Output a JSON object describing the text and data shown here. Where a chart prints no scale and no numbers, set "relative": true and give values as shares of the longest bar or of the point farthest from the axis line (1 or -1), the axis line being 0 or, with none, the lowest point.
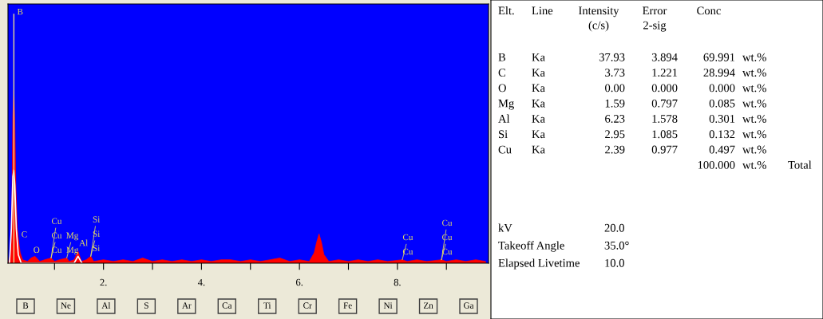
{
  "chart_data": [
    {
      "type": "area",
      "relative": true,
      "xlim": [
        0.05,
        9.86
      ],
      "xticks": [
        {
          "value": 1,
          "label": null
        },
        {
          "value": 2,
          "label": "2."
        },
        {
          "value": 3,
          "label": null
        },
        {
          "value": 4,
          "label": "4."
        },
        {
          "value": 5,
          "label": null
        },
        {
          "value": 6,
          "label": "6."
        },
        {
          "value": 7,
          "label": null
        },
        {
          "value": 8,
          "label": "8."
        },
        {
          "value": 9,
          "label": null
        }
      ],
      "grid": false,
      "legend": false,
      "tick_labels": "x",
      "ref_lines": [
        {
          "axis": "x",
          "value": 0.17,
          "color": "#e8d890",
          "label": "B"
        }
      ],
      "series": [
        {
          "type": "area",
          "color": "#ff0000",
          "x": [
            0.05,
            0.1,
            0.13,
            0.15,
            0.17,
            0.19,
            0.21,
            0.24,
            0.27,
            0.3,
            0.35,
            0.45,
            0.52,
            0.6,
            0.7,
            0.8,
            0.93,
            1.0,
            1.1,
            1.25,
            1.3,
            1.4,
            1.48,
            1.55,
            1.65,
            1.74,
            1.8,
            2.0,
            2.2,
            2.4,
            2.6,
            2.8,
            3.0,
            3.2,
            3.4,
            3.6,
            3.8,
            4.0,
            4.2,
            4.4,
            4.6,
            4.8,
            5.0,
            5.2,
            5.4,
            5.6,
            5.8,
            6.0,
            6.2,
            6.3,
            6.35,
            6.4,
            6.45,
            6.5,
            6.6,
            6.8,
            7.0,
            7.2,
            7.4,
            7.6,
            7.8,
            8.1,
            8.2,
            8.4,
            8.6,
            8.9,
            9.0,
            9.2,
            9.4,
            9.6,
            9.8
          ],
          "values": [
            0,
            0.05,
            0.35,
            0.85,
            1.0,
            0.8,
            0.45,
            0.2,
            0.12,
            0.06,
            0.02,
            0.01,
            0.03,
            0.04,
            0.01,
            0.02,
            0.03,
            0.01,
            0.02,
            0.03,
            0.01,
            0.02,
            0.07,
            0.01,
            0.02,
            0.04,
            0.01,
            0.02,
            0.01,
            0.02,
            0.01,
            0.03,
            0.01,
            0.02,
            0.01,
            0.02,
            0.01,
            0.02,
            0.01,
            0.02,
            0.02,
            0.01,
            0.02,
            0.01,
            0.02,
            0.03,
            0.01,
            0.02,
            0.01,
            0.06,
            0.12,
            0.17,
            0.12,
            0.05,
            0.01,
            0.02,
            0.01,
            0.02,
            0.01,
            0.02,
            0.01,
            0.02,
            0.01,
            0.02,
            0.01,
            0.02,
            0.01,
            0.02,
            0.01,
            0.02,
            0.01
          ]
        },
        {
          "type": "line",
          "color": "#ffffff",
          "x": [
            0.08,
            0.12,
            0.15,
            0.17,
            0.19,
            0.22,
            0.26,
            0.32,
            1.4,
            1.48,
            1.56
          ],
          "values": [
            0,
            0.2,
            0.5,
            0.54,
            0.45,
            0.2,
            0.05,
            0,
            0,
            0.04,
            0
          ]
        }
      ],
      "annotations": [
        {
          "text": "C",
          "x": 0.27,
          "y": 0.12
        },
        {
          "text": "O",
          "x": 0.52,
          "y": 0.03
        },
        {
          "text": "Cu",
          "x": 0.93,
          "y": 0.03
        },
        {
          "text": "Cu",
          "x": 0.93,
          "y": 0.03
        },
        {
          "text": "Cu",
          "x": 0.93,
          "y": 0.03
        },
        {
          "text": "Mg",
          "x": 1.25,
          "y": 0.03
        },
        {
          "text": "Mg",
          "x": 1.25,
          "y": 0.03
        },
        {
          "text": "Al",
          "x": 1.48,
          "y": 0.07
        },
        {
          "text": "Si",
          "x": 1.74,
          "y": 0.04
        },
        {
          "text": "Si",
          "x": 1.74,
          "y": 0.04
        },
        {
          "text": "Si",
          "x": 1.74,
          "y": 0.04
        },
        {
          "text": "Cu",
          "x": 8.1,
          "y": 0.02
        },
        {
          "text": "Cu",
          "x": 8.1,
          "y": 0.02
        },
        {
          "text": "Cu",
          "x": 8.9,
          "y": 0.02
        },
        {
          "text": "Cu",
          "x": 8.9,
          "y": 0.02
        },
        {
          "text": "Cu",
          "x": 8.9,
          "y": 0.02
        },
        "B",
        "Ne",
        "Al",
        "S",
        "Ar",
        "Ca",
        "Ti",
        "Cr",
        "Fe",
        "Ni",
        "Zn",
        "Ga"
      ]
    },
    {
      "type": "other",
      "annotations": [
        "Elt.\tLine\tIntensity\n(c/s)\tError\n2-sig\tConc",
        "B\tKa\t37.93\t3.894\t69.991\twt.%",
        "C\tKa\t3.73\t1.221\t28.994\twt.%",
        "O\tKa\t0.00\t0.000\t0.000\twt.%",
        "Mg\tKa\t1.59\t0.797\t0.085\twt.%",
        "Al\tKa\t6.23\t1.578\t0.301\twt.%",
        "Si\tKa\t2.95\t1.085\t0.132\twt.%",
        "Cu\tKa\t2.39\t0.977\t0.497\twt.%",
        "\t\t\t\t100.000\twt.%\tTotal",
        "kV\t20.0",
        "Takeoff Angle\t35.0°",
        "Elapsed Livetime\t10.0"
      ]
    }
  ]
}
